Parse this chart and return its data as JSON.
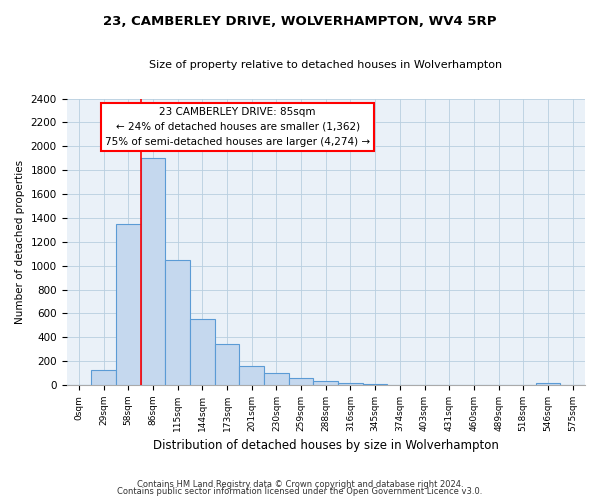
{
  "title": "23, CAMBERLEY DRIVE, WOLVERHAMPTON, WV4 5RP",
  "subtitle": "Size of property relative to detached houses in Wolverhampton",
  "xlabel": "Distribution of detached houses by size in Wolverhampton",
  "ylabel": "Number of detached properties",
  "footnote1": "Contains HM Land Registry data © Crown copyright and database right 2024.",
  "footnote2": "Contains public sector information licensed under the Open Government Licence v3.0.",
  "bar_labels": [
    "0sqm",
    "29sqm",
    "58sqm",
    "86sqm",
    "115sqm",
    "144sqm",
    "173sqm",
    "201sqm",
    "230sqm",
    "259sqm",
    "288sqm",
    "316sqm",
    "345sqm",
    "374sqm",
    "403sqm",
    "431sqm",
    "460sqm",
    "489sqm",
    "518sqm",
    "546sqm",
    "575sqm"
  ],
  "bar_values": [
    0,
    125,
    1350,
    1900,
    1050,
    550,
    340,
    160,
    105,
    60,
    30,
    15,
    5,
    0,
    0,
    0,
    0,
    0,
    0,
    20,
    0
  ],
  "bar_color": "#c5d8ee",
  "bar_edge_color": "#5b9bd5",
  "ylim": [
    0,
    2400
  ],
  "yticks": [
    0,
    200,
    400,
    600,
    800,
    1000,
    1200,
    1400,
    1600,
    1800,
    2000,
    2200,
    2400
  ],
  "annotation_box_text1": "23 CAMBERLEY DRIVE: 85sqm",
  "annotation_line1": "← 24% of detached houses are smaller (1,362)",
  "annotation_line2": "75% of semi-detached houses are larger (4,274) →",
  "red_line_x": 3,
  "bg_color": "#e8f0f8",
  "plot_bg_color": "#eaf1f8"
}
